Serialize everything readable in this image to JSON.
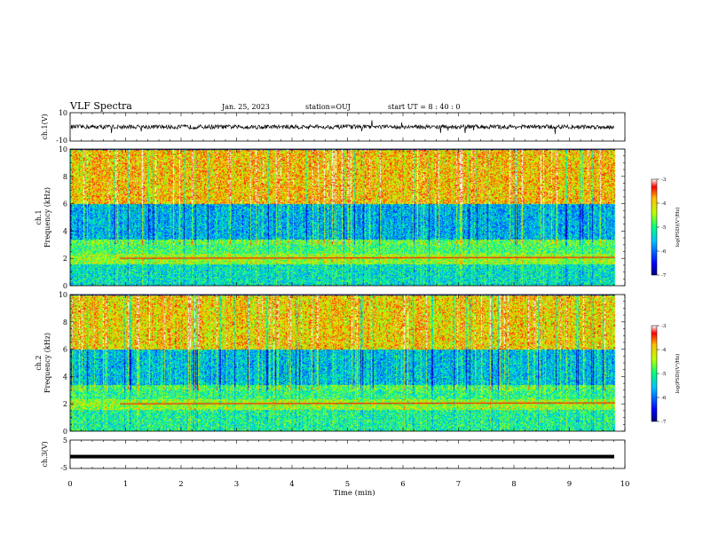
{
  "header": {
    "title": "VLF Spectra",
    "date": "Jan. 25, 2023",
    "station": "station=OUJ",
    "start": "start UT =  8 : 40 : 0"
  },
  "chart_data": [
    {
      "type": "line",
      "panel": "waveform-ch1",
      "ylabel": "ch.1(V)",
      "ylim": [
        -10,
        10
      ],
      "yticks": [
        "10",
        "-10"
      ],
      "xlim": [
        0,
        10
      ],
      "approx_level": 0,
      "approx_envelope": [
        -1.5,
        1.5
      ],
      "line_color": "#000000"
    },
    {
      "type": "heatmap",
      "panel": "spectrogram-ch1",
      "ylabel_top": "ch.1",
      "ylabel": "Frequency (kHz)",
      "ylim": [
        0,
        10
      ],
      "yticks": [
        "0",
        "2",
        "4",
        "6",
        "8",
        "10"
      ],
      "xlim": [
        0,
        10
      ],
      "data_end_min": 9.83,
      "bands_khz": [
        {
          "from": 0,
          "to": 1.6,
          "level": -5.4
        },
        {
          "from": 1.6,
          "to": 2.4,
          "level": -4.6
        },
        {
          "from": 2.4,
          "to": 3.4,
          "level": -5.0
        },
        {
          "from": 3.4,
          "to": 6.0,
          "level": -5.9
        },
        {
          "from": 6.0,
          "to": 10,
          "level": -4.2
        }
      ],
      "colorbar": {
        "label": "log(PSD)(V²/Hz)",
        "range": [
          -7,
          -3
        ],
        "ticks": [
          "-3",
          "-4",
          "-5",
          "-6",
          "-7"
        ]
      }
    },
    {
      "type": "heatmap",
      "panel": "spectrogram-ch2",
      "ylabel_top": "ch.2",
      "ylabel": "Frequency (kHz)",
      "ylim": [
        0,
        10
      ],
      "yticks": [
        "0",
        "2",
        "4",
        "6",
        "8",
        "10"
      ],
      "xlim": [
        0,
        10
      ],
      "data_end_min": 9.83,
      "bands_khz": [
        {
          "from": 0,
          "to": 1.6,
          "level": -5.2
        },
        {
          "from": 1.6,
          "to": 2.4,
          "level": -4.6
        },
        {
          "from": 2.4,
          "to": 3.4,
          "level": -5.1
        },
        {
          "from": 3.4,
          "to": 6.0,
          "level": -5.8
        },
        {
          "from": 6.0,
          "to": 10,
          "level": -4.3
        }
      ],
      "colorbar": {
        "label": "log(PSD)(V²/Hz)",
        "range": [
          -7,
          -3
        ],
        "ticks": [
          "-3",
          "-4",
          "-5",
          "-6",
          "-7"
        ]
      }
    },
    {
      "type": "line",
      "panel": "waveform-ch3",
      "ylabel": "ch.3(V)",
      "ylim": [
        -5,
        5
      ],
      "yticks": [
        "5",
        "-5"
      ],
      "xlim": [
        0,
        10
      ],
      "approx_level": -0.8,
      "line_color": "#000000"
    }
  ],
  "xaxis": {
    "label": "Time (min)",
    "ticks": [
      "0",
      "1",
      "2",
      "3",
      "4",
      "5",
      "6",
      "7",
      "8",
      "9",
      "10"
    ]
  }
}
